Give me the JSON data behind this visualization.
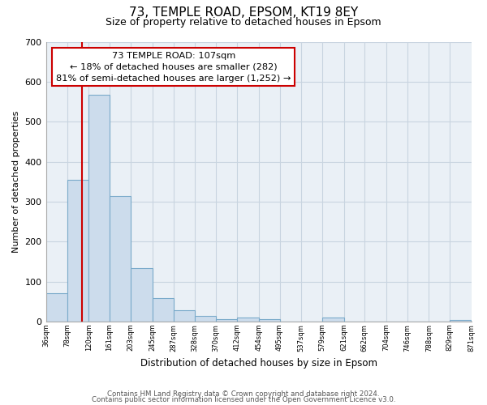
{
  "title": "73, TEMPLE ROAD, EPSOM, KT19 8EY",
  "subtitle": "Size of property relative to detached houses in Epsom",
  "xlabel": "Distribution of detached houses by size in Epsom",
  "ylabel": "Number of detached properties",
  "bar_edges": [
    36,
    78,
    120,
    161,
    203,
    245,
    287,
    328,
    370,
    412,
    454,
    495,
    537,
    579,
    621,
    662,
    704,
    746,
    788,
    829,
    871
  ],
  "bar_heights": [
    70,
    355,
    567,
    313,
    133,
    58,
    28,
    14,
    5,
    10,
    5,
    0,
    0,
    10,
    0,
    0,
    0,
    0,
    0,
    3
  ],
  "bar_color": "#ccdcec",
  "bar_edge_color": "#7aaaca",
  "ylim": [
    0,
    700
  ],
  "yticks": [
    0,
    100,
    200,
    300,
    400,
    500,
    600,
    700
  ],
  "property_size": 107,
  "vline_color": "#cc0000",
  "annotation_line1": "73 TEMPLE ROAD: 107sqm",
  "annotation_line2": "← 18% of detached houses are smaller (282)",
  "annotation_line3": "81% of semi-detached houses are larger (1,252) →",
  "box_edge_color": "#cc0000",
  "footer_line1": "Contains HM Land Registry data © Crown copyright and database right 2024.",
  "footer_line2": "Contains public sector information licensed under the Open Government Licence v3.0.",
  "grid_color": "#c8d4e0",
  "background_color": "#eaf0f6",
  "tick_labels": [
    "36sqm",
    "78sqm",
    "120sqm",
    "161sqm",
    "203sqm",
    "245sqm",
    "287sqm",
    "328sqm",
    "370sqm",
    "412sqm",
    "454sqm",
    "495sqm",
    "537sqm",
    "579sqm",
    "621sqm",
    "662sqm",
    "704sqm",
    "746sqm",
    "788sqm",
    "829sqm",
    "871sqm"
  ]
}
